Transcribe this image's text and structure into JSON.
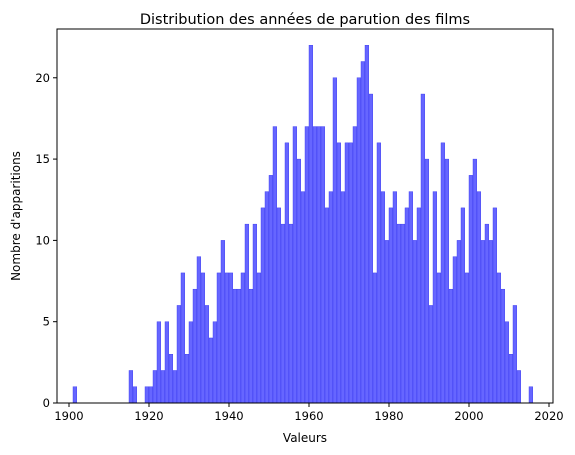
{
  "chart_data": {
    "type": "bar",
    "title": "Distribution des années de parution des films",
    "xlabel": "Valeurs",
    "ylabel": "Nombre d'apparitions",
    "xlim": [
      1897,
      2021
    ],
    "ylim": [
      0,
      23
    ],
    "grid": false,
    "bar_color": "#6666ff",
    "bar_edge_color": "#3333ee",
    "xticks": [
      1900,
      1920,
      1940,
      1960,
      1980,
      2000,
      2020
    ],
    "yticks": [
      0,
      5,
      10,
      15,
      20
    ],
    "bin_width": 0.95,
    "x": [
      1901,
      1915,
      1916,
      1919,
      1920,
      1921,
      1922,
      1923,
      1924,
      1925,
      1926,
      1927,
      1928,
      1929,
      1930,
      1931,
      1932,
      1933,
      1934,
      1935,
      1936,
      1937,
      1938,
      1939,
      1940,
      1941,
      1942,
      1943,
      1944,
      1945,
      1946,
      1947,
      1948,
      1949,
      1950,
      1951,
      1952,
      1953,
      1954,
      1955,
      1956,
      1957,
      1958,
      1959,
      1960,
      1961,
      1962,
      1963,
      1964,
      1965,
      1966,
      1967,
      1968,
      1969,
      1970,
      1971,
      1972,
      1973,
      1974,
      1975,
      1976,
      1977,
      1978,
      1979,
      1980,
      1981,
      1982,
      1983,
      1984,
      1985,
      1986,
      1987,
      1988,
      1989,
      1990,
      1991,
      1992,
      1993,
      1994,
      1995,
      1996,
      1997,
      1998,
      1999,
      2000,
      2001,
      2002,
      2003,
      2004,
      2005,
      2006,
      2007,
      2008,
      2009,
      2010,
      2011,
      2012,
      2015
    ],
    "values": [
      1,
      2,
      1,
      1,
      1,
      2,
      5,
      2,
      5,
      3,
      2,
      6,
      8,
      3,
      5,
      7,
      9,
      8,
      6,
      4,
      5,
      8,
      10,
      8,
      8,
      7,
      7,
      8,
      11,
      7,
      11,
      8,
      12,
      13,
      14,
      17,
      12,
      11,
      16,
      11,
      17,
      15,
      13,
      17,
      22,
      17,
      17,
      17,
      12,
      13,
      20,
      16,
      13,
      16,
      16,
      17,
      20,
      21,
      22,
      19,
      8,
      16,
      13,
      10,
      12,
      13,
      11,
      11,
      12,
      13,
      10,
      12,
      19,
      15,
      6,
      13,
      8,
      16,
      15,
      7,
      9,
      10,
      12,
      8,
      14,
      15,
      13,
      10,
      11,
      10,
      12,
      8,
      7,
      5,
      3,
      6,
      2,
      1
    ]
  }
}
